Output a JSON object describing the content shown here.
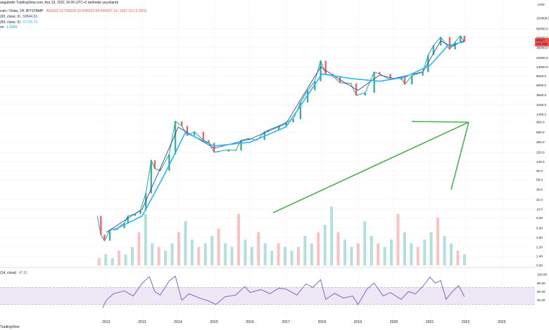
{
  "header": {
    "line1_prefix": "coin / Dolar, 1H, BITSTAMP",
    "ohlc": [
      "A50102.31",
      "Y50236.20",
      "D46932.58",
      "K48427.19",
      "-1697.19 (-3.39%)"
    ],
    "title_by": "angubidin TradingView.com, Ara 13, 2021 16:00 UTC+2 tarihinde yayınlandı",
    "ma1": "(20, close, 0)",
    "ma1_value": "50844.63",
    "ma2": "(50, close, 0)",
    "ma2_value": "47735.76",
    "vol": "ım",
    "vol_value": "1.395K",
    "rsi_label": "(14, close)",
    "rsi_value": "47.61",
    "footer": "TradingView"
  },
  "colors": {
    "up": "#26a69a",
    "down": "#ef5350",
    "ma1": "#3e3d9a",
    "ma2": "#29b6f6",
    "arrow": "#4caf50",
    "rsi_line": "#7e57c2",
    "rsi_band": "#ede7f6"
  },
  "chart_data": [
    {
      "type": "line",
      "scale": "log",
      "x_ticks": [
        "2012",
        "2013",
        "2014",
        "2015",
        "2016",
        "2017",
        "2018",
        "2019",
        "2020",
        "2021",
        "2022",
        "2023"
      ],
      "y_ticks": [
        "150000.0",
        "90000.0",
        "58000.0",
        "36000.0",
        "22000.0",
        "14000.0",
        "9000.0",
        "5800.0",
        "3600.0",
        "2200.0",
        "1400.0",
        "960.0",
        "580.0",
        "360.0",
        "220.0",
        "140.0",
        "90.0",
        "58.0",
        "36.0",
        "22.0",
        "14.0",
        "9.00",
        "5.50",
        "3.50",
        "2.20",
        "1.40",
        "0.90"
      ],
      "price_labels": [
        "48427",
        "Sel 336"
      ],
      "top_label": "USD",
      "series": [
        {
          "x": [
            2011.75,
            2011.85,
            2011.95,
            2012.1,
            2012.3,
            2012.5,
            2012.6,
            2012.8,
            2012.95,
            2013.1,
            2013.25,
            2013.35,
            2013.5,
            2013.75,
            2013.92,
            2014.1,
            2014.25,
            2014.45,
            2014.7,
            2014.85,
            2015.0,
            2015.1,
            2015.4,
            2015.6,
            2015.75,
            2015.95,
            2016.2,
            2016.4,
            2016.5,
            2016.8,
            2017.0,
            2017.2,
            2017.4,
            2017.6,
            2017.8,
            2017.96,
            2018.1,
            2018.3,
            2018.5,
            2018.8,
            2018.95,
            2019.2,
            2019.45,
            2019.6,
            2019.9,
            2020.2,
            2020.3,
            2020.5,
            2020.8,
            2020.95,
            2021.1,
            2021.3,
            2021.55,
            2021.7,
            2021.85,
            2021.96
          ],
          "y": [
            10,
            4,
            3,
            5,
            5.5,
            7,
            10,
            11,
            13,
            30,
            150,
            100,
            90,
            200,
            1000,
            800,
            500,
            600,
            400,
            350,
            220,
            230,
            250,
            240,
            400,
            430,
            400,
            600,
            650,
            800,
            950,
            1100,
            2500,
            4500,
            7000,
            19000,
            10000,
            9000,
            6500,
            6300,
            3500,
            4000,
            11000,
            10000,
            7500,
            8500,
            6000,
            9200,
            11000,
            25000,
            40000,
            60000,
            33000,
            47000,
            64000,
            48427
          ]
        },
        {
          "name": "MA 20",
          "x": [
            2012.0,
            2013.0,
            2013.5,
            2014.0,
            2015.0,
            2016.0,
            2017.0,
            2017.96,
            2018.5,
            2019.0,
            2019.6,
            2020.0,
            2020.8,
            2021.3,
            2021.6,
            2021.96
          ],
          "y": [
            4.5,
            14,
            100,
            750,
            270,
            420,
            900,
            14000,
            7500,
            4500,
            9500,
            8000,
            11000,
            50000,
            38000,
            50844
          ]
        },
        {
          "name": "MA 50",
          "x": [
            2012.2,
            2013.0,
            2013.6,
            2014.2,
            2015.0,
            2016.0,
            2017.0,
            2018.0,
            2018.8,
            2019.6,
            2020.3,
            2021.0,
            2021.5,
            2021.96
          ],
          "y": [
            5,
            10,
            70,
            580,
            300,
            360,
            760,
            10000,
            8000,
            7000,
            8500,
            15000,
            40000,
            47735
          ]
        }
      ],
      "volume": [
        2,
        3,
        2,
        4,
        3,
        5,
        9,
        14,
        6,
        5,
        4,
        6,
        9,
        12,
        7,
        5,
        6,
        8,
        10,
        6,
        5,
        14,
        7,
        5,
        9,
        6,
        4,
        6,
        5,
        4,
        5,
        8,
        6,
        9,
        11,
        16,
        9,
        7,
        5,
        6,
        12,
        8,
        6,
        5,
        7,
        14,
        9,
        6,
        5,
        7,
        9,
        13,
        8,
        6,
        4,
        3
      ]
    },
    {
      "type": "line",
      "x": [
        2011.9,
        2012.0,
        2012.2,
        2012.5,
        2012.75,
        2013.0,
        2013.2,
        2013.35,
        2013.5,
        2013.75,
        2013.92,
        2014.1,
        2014.3,
        2014.6,
        2014.85,
        2015.05,
        2015.3,
        2015.6,
        2015.85,
        2016.0,
        2016.3,
        2016.55,
        2016.8,
        2017.0,
        2017.3,
        2017.55,
        2017.75,
        2017.96,
        2018.1,
        2018.35,
        2018.6,
        2018.85,
        2019.0,
        2019.25,
        2019.45,
        2019.7,
        2019.9,
        2020.2,
        2020.4,
        2020.6,
        2020.8,
        2021.0,
        2021.15,
        2021.3,
        2021.45,
        2021.6,
        2021.8,
        2021.96
      ],
      "y": [
        22,
        40,
        55,
        62,
        50,
        80,
        95,
        60,
        52,
        85,
        96,
        40,
        55,
        45,
        38,
        30,
        48,
        52,
        72,
        58,
        65,
        55,
        68,
        66,
        52,
        78,
        70,
        88,
        42,
        56,
        45,
        50,
        30,
        66,
        80,
        50,
        58,
        42,
        60,
        55,
        72,
        94,
        80,
        86,
        42,
        58,
        74,
        48
      ],
      "ylim": [
        0,
        100
      ],
      "y_ticks": [
        "100.00",
        "80.00",
        "60.00",
        "40.00"
      ],
      "bands": [
        30,
        70
      ]
    }
  ]
}
